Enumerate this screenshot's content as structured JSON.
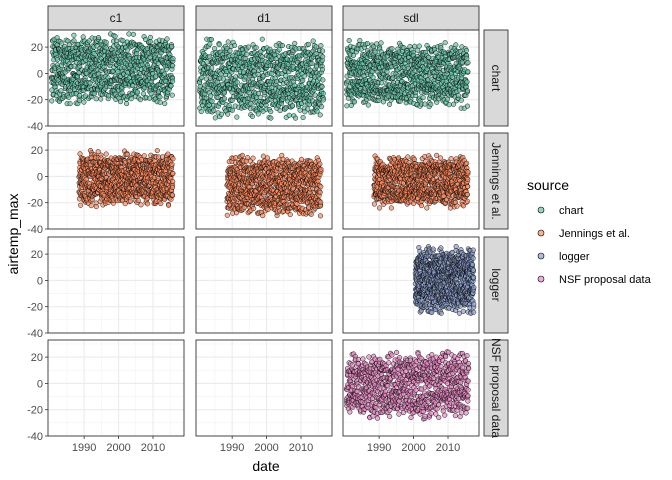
{
  "chart_data": {
    "type": "scatter",
    "facet_columns": [
      "c1",
      "d1",
      "sdl"
    ],
    "facet_rows": [
      "chart",
      "Jennings et al.",
      "logger",
      "NSF proposal data"
    ],
    "xlabel": "date",
    "ylabel": "airtemp_max",
    "x_ticks": [
      "1990",
      "2000",
      "2010"
    ],
    "y_ticks": [
      "-40",
      "-20",
      "0",
      "20"
    ],
    "xlim": [
      1979.5,
      2019
    ],
    "ylim": [
      -40,
      33
    ],
    "grid": true,
    "legend": {
      "title": "source",
      "position": "right",
      "entries": [
        "chart",
        "Jennings et al.",
        "logger",
        "NSF proposal data"
      ]
    },
    "colors": {
      "chart": "#66c2a5",
      "Jennings et al.": "#fc8d62",
      "logger": "#8da0cb",
      "NSF proposal data": "#e78ac3"
    },
    "series": [
      {
        "row": "chart",
        "column": "c1",
        "x_range": [
          1980.5,
          2015.8
        ],
        "y_range": [
          -23,
          30
        ]
      },
      {
        "row": "chart",
        "column": "d1",
        "x_range": [
          1980.5,
          2016.5
        ],
        "y_range": [
          -34,
          26
        ]
      },
      {
        "row": "chart",
        "column": "sdl",
        "x_range": [
          1980.5,
          2015.8
        ],
        "y_range": [
          -27,
          25
        ]
      },
      {
        "row": "Jennings et al.",
        "column": "c1",
        "x_range": [
          1988.5,
          2015.8
        ],
        "y_range": [
          -23,
          20
        ]
      },
      {
        "row": "Jennings et al.",
        "column": "d1",
        "x_range": [
          1988.5,
          2015.8
        ],
        "y_range": [
          -30,
          16
        ]
      },
      {
        "row": "Jennings et al.",
        "column": "sdl",
        "x_range": [
          1988.5,
          2015.8
        ],
        "y_range": [
          -24,
          16
        ]
      },
      {
        "row": "logger",
        "column": "sdl",
        "x_range": [
          2000.5,
          2017.5
        ],
        "y_range": [
          -25,
          26
        ]
      },
      {
        "row": "NSF proposal data",
        "column": "sdl",
        "x_range": [
          1980.5,
          2016
        ],
        "y_range": [
          -27,
          24
        ]
      }
    ]
  }
}
